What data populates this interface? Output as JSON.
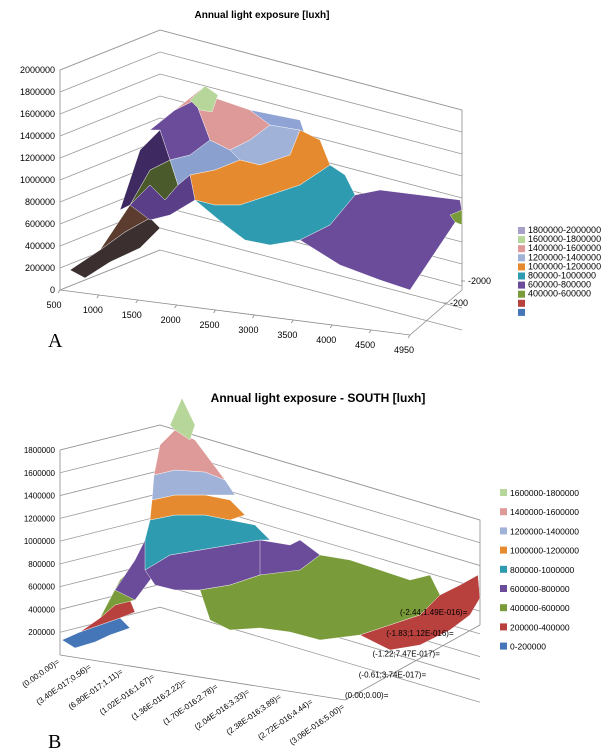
{
  "chart_data": [
    {
      "type": "surface",
      "title": "Annual light exposure [luxh]",
      "panel_label": "A",
      "z_ticks": [
        "0",
        "200000",
        "400000",
        "600000",
        "800000",
        "1000000",
        "1200000",
        "1400000",
        "1600000",
        "1800000",
        "2000000"
      ],
      "x_ticks": [
        "500",
        "1000",
        "1500",
        "2000",
        "2500",
        "3000",
        "3500",
        "4000",
        "4500",
        "4950"
      ],
      "y_ticks": [
        "-2000",
        "-200"
      ],
      "zlim": [
        0,
        2000000
      ],
      "legend": [
        {
          "label": "1800000-2000000",
          "color": "#a7a1c9"
        },
        {
          "label": "1600000-1800000",
          "color": "#b7d69a"
        },
        {
          "label": "1400000-1600000",
          "color": "#de9a98"
        },
        {
          "label": "1200000-1400000",
          "color": "#a0b2d8"
        },
        {
          "label": "1000000-1200000",
          "color": "#e58a2e"
        },
        {
          "label": "800000-1000000",
          "color": "#2f9bb0"
        },
        {
          "label": "600000-800000",
          "color": "#6b4c9a"
        },
        {
          "label": "400000-600000",
          "color": "#7a9b3a"
        },
        {
          "label": "",
          "color": "#b8413e"
        },
        {
          "label": "",
          "color": "#4577b8"
        }
      ]
    },
    {
      "type": "surface",
      "title": "Annual light exposure - SOUTH [luxh]",
      "panel_label": "B",
      "z_ticks": [
        "200000",
        "400000",
        "600000",
        "800000",
        "1000000",
        "1200000",
        "1400000",
        "1600000",
        "1800000"
      ],
      "x_ticks": [
        "(0.00;0.00)=",
        "(3.40E-017;0.56)=",
        "(6.80E-017;1.11)=",
        "(1.02E-016;1.67)=",
        "(1.36E-016;2.22)=",
        "(1.70E-016;2.78)=",
        "(2.04E-016;3.33)=",
        "(2.38E-016;3.89)=",
        "(2.72E-016;4.44)=",
        "(3.06E-016;5.00)="
      ],
      "y_ticks": [
        "(-2.44;1.49E-016)=",
        "(-1.83;1.12E-016)=",
        "(-1.22;7.47E-017)=",
        "(-0.61;3.74E-017)=",
        "(0.00;0.00)="
      ],
      "zlim": [
        0,
        1800000
      ],
      "legend": [
        {
          "label": "1600000-1800000",
          "color": "#b7d69a"
        },
        {
          "label": "1400000-1600000",
          "color": "#de9a98"
        },
        {
          "label": "1200000-1400000",
          "color": "#a0b2d8"
        },
        {
          "label": "1000000-1200000",
          "color": "#e58a2e"
        },
        {
          "label": "800000-1000000",
          "color": "#2f9bb0"
        },
        {
          "label": "600000-800000",
          "color": "#6b4c9a"
        },
        {
          "label": "400000-600000",
          "color": "#7a9b3a"
        },
        {
          "label": "200000-400000",
          "color": "#b8413e"
        },
        {
          "label": "0-200000",
          "color": "#4577b8"
        }
      ]
    }
  ]
}
